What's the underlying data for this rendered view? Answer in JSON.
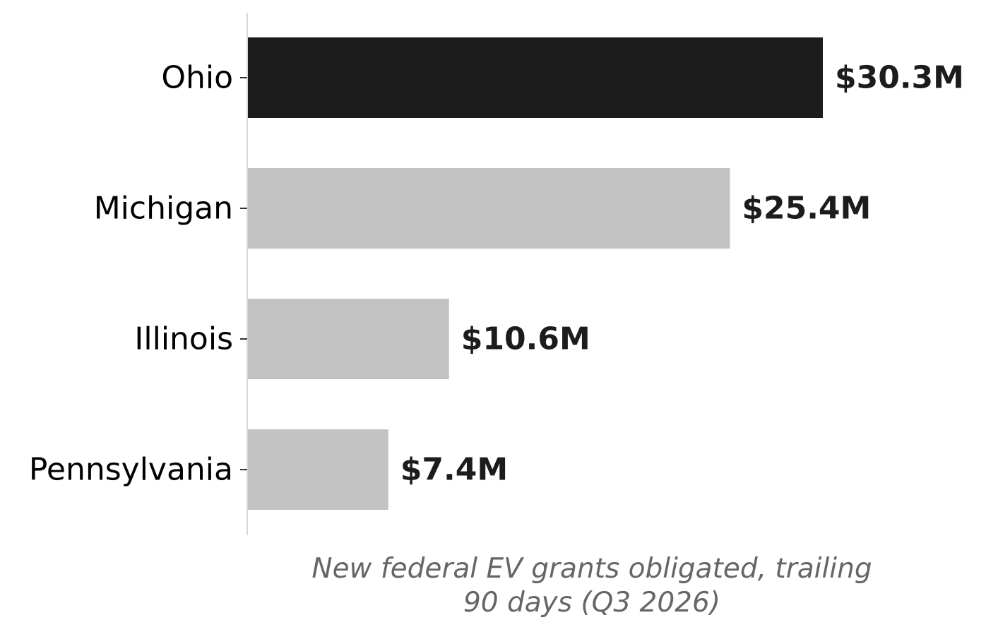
{
  "chart_data": {
    "type": "bar",
    "orientation": "horizontal",
    "categories": [
      "Ohio",
      "Michigan",
      "Illinois",
      "Pennsylvania"
    ],
    "values": [
      30.3,
      25.4,
      10.6,
      7.4
    ],
    "value_labels": [
      "$30.3M",
      "$25.4M",
      "$10.6M",
      "$7.4M"
    ],
    "units": "$M",
    "title": "",
    "xlabel_lines": [
      "New federal EV grants obligated, trailing",
      "90 days (Q3 2026)"
    ],
    "ylabel": "",
    "xlim": [
      0,
      35
    ],
    "grid": false,
    "legend": "none",
    "highlight_category": "Ohio",
    "colors": {
      "highlight": "#1c1c1c",
      "default": "#c2c2c2",
      "axis": "#d9d9d9",
      "tick": "#333333",
      "xlabel": "#666666",
      "value_text": "#1c1c1c",
      "category_text": "#000000"
    }
  }
}
